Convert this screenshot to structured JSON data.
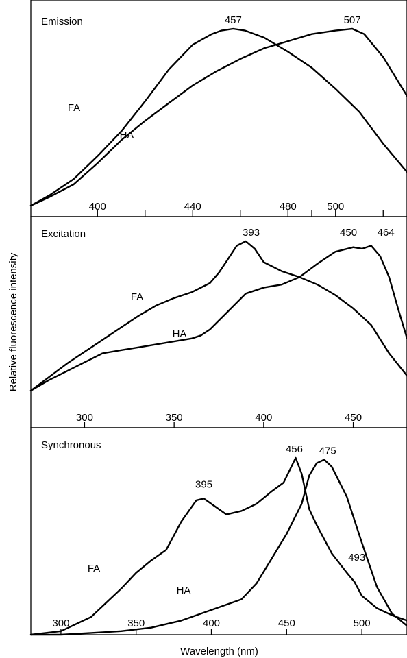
{
  "figure": {
    "ylabel": "Relative fluorescence intensity",
    "xlabel": "Wavelength (nm)"
  },
  "chart_data": [
    {
      "type": "line",
      "title": "Emission",
      "xlim": [
        372,
        530
      ],
      "xticks": [
        400,
        440,
        480,
        500
      ],
      "series": [
        {
          "name": "FA",
          "x": [
            372,
            380,
            390,
            400,
            410,
            420,
            430,
            440,
            448,
            452,
            457,
            462,
            470,
            480,
            490,
            500,
            510,
            520,
            530
          ],
          "y": [
            0.0,
            0.06,
            0.15,
            0.28,
            0.42,
            0.59,
            0.77,
            0.91,
            0.97,
            0.99,
            1.0,
            0.99,
            0.95,
            0.87,
            0.78,
            0.66,
            0.53,
            0.35,
            0.19
          ]
        },
        {
          "name": "HA",
          "x": [
            372,
            380,
            390,
            400,
            410,
            420,
            430,
            440,
            450,
            460,
            470,
            480,
            490,
            500,
            507,
            512,
            520,
            530
          ],
          "y": [
            0.0,
            0.05,
            0.12,
            0.24,
            0.37,
            0.48,
            0.58,
            0.68,
            0.76,
            0.83,
            0.89,
            0.93,
            0.97,
            0.99,
            1.0,
            0.97,
            0.84,
            0.62
          ]
        }
      ],
      "annotations": [
        {
          "text": "457",
          "x": 457,
          "y": 1.0
        },
        {
          "text": "507",
          "x": 507,
          "y": 1.0
        }
      ]
    },
    {
      "type": "line",
      "title": "Excitation",
      "xlim": [
        270,
        480
      ],
      "xticks": [
        300,
        350,
        400,
        450
      ],
      "series": [
        {
          "name": "FA",
          "x": [
            270,
            280,
            290,
            300,
            310,
            320,
            330,
            340,
            350,
            360,
            370,
            375,
            380,
            385,
            390,
            395,
            400,
            410,
            420,
            430,
            440,
            450,
            460,
            470,
            480
          ],
          "y": [
            0.0,
            0.09,
            0.18,
            0.26,
            0.34,
            0.42,
            0.5,
            0.57,
            0.62,
            0.66,
            0.72,
            0.79,
            0.88,
            0.97,
            1.0,
            0.95,
            0.86,
            0.8,
            0.76,
            0.71,
            0.64,
            0.55,
            0.44,
            0.25,
            0.1
          ]
        },
        {
          "name": "HA",
          "x": [
            270,
            280,
            290,
            300,
            310,
            320,
            330,
            340,
            350,
            360,
            365,
            370,
            380,
            390,
            400,
            410,
            420,
            430,
            440,
            450,
            455,
            460,
            465,
            470,
            475,
            480
          ],
          "y": [
            0.0,
            0.07,
            0.13,
            0.19,
            0.25,
            0.27,
            0.29,
            0.31,
            0.33,
            0.35,
            0.37,
            0.41,
            0.53,
            0.65,
            0.69,
            0.71,
            0.76,
            0.85,
            0.93,
            0.96,
            0.95,
            0.97,
            0.9,
            0.76,
            0.55,
            0.35
          ]
        }
      ],
      "annotations": [
        {
          "text": "393",
          "x": 393,
          "y": 1.0
        },
        {
          "text": "450",
          "x": 450,
          "y": 1.0
        },
        {
          "text": "464",
          "x": 464,
          "y": 1.0
        }
      ]
    },
    {
      "type": "line",
      "title": "Synchronous",
      "xlim": [
        280,
        530
      ],
      "xticks": [
        300,
        350,
        400,
        450,
        500
      ],
      "series": [
        {
          "name": "FA",
          "x": [
            280,
            300,
            320,
            340,
            350,
            360,
            370,
            380,
            390,
            395,
            400,
            410,
            420,
            430,
            440,
            448,
            452,
            456,
            460,
            465,
            470,
            480,
            490,
            495,
            500,
            510,
            520,
            530
          ],
          "y": [
            0.0,
            0.02,
            0.1,
            0.26,
            0.35,
            0.42,
            0.48,
            0.64,
            0.76,
            0.77,
            0.74,
            0.68,
            0.7,
            0.74,
            0.81,
            0.86,
            0.93,
            1.0,
            0.91,
            0.71,
            0.62,
            0.46,
            0.35,
            0.3,
            0.22,
            0.15,
            0.11,
            0.08
          ]
        },
        {
          "name": "HA",
          "x": [
            280,
            300,
            320,
            340,
            360,
            380,
            400,
            420,
            430,
            440,
            450,
            460,
            465,
            470,
            475,
            480,
            490,
            500,
            510,
            520,
            530
          ],
          "y": [
            0.0,
            0.0,
            0.01,
            0.02,
            0.04,
            0.08,
            0.14,
            0.2,
            0.29,
            0.43,
            0.57,
            0.74,
            0.9,
            0.97,
            0.99,
            0.95,
            0.78,
            0.52,
            0.27,
            0.12,
            0.05
          ]
        }
      ],
      "annotations": [
        {
          "text": "395",
          "x": 395,
          "y": 0.77
        },
        {
          "text": "456",
          "x": 456,
          "y": 1.0
        },
        {
          "text": "475",
          "x": 475,
          "y": 0.99
        },
        {
          "text": "493",
          "x": 493,
          "y": 0.45
        }
      ]
    }
  ]
}
